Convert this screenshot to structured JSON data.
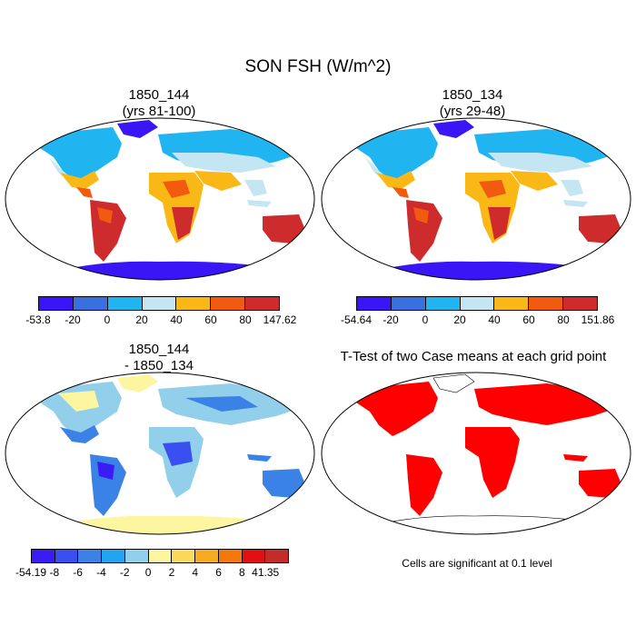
{
  "title": "SON FSH (W/m^2)",
  "panels": [
    {
      "title": "1850_144\n(yrs 81-100)"
    },
    {
      "title": "1850_134\n(yrs 29-48)"
    },
    {
      "title": "1850_144\n- 1850_134"
    },
    {
      "title": "T-Test of two Case means at each grid point"
    }
  ],
  "colorbars": [
    {
      "labels": [
        "-53.8",
        "-20",
        "0",
        "20",
        "40",
        "60",
        "80",
        "147.62"
      ],
      "colors": [
        "#3a15f5",
        "#3a6fe0",
        "#20b4f0",
        "#c4e6f2",
        "#f9b815",
        "#f25a10",
        "#ce2c2c"
      ]
    },
    {
      "labels": [
        "-54.64",
        "-20",
        "0",
        "20",
        "40",
        "60",
        "80",
        "151.86"
      ],
      "colors": [
        "#3a15f5",
        "#3a6fe0",
        "#20b4f0",
        "#c4e6f2",
        "#f9b815",
        "#f25a10",
        "#ce2c2c"
      ]
    },
    {
      "labels": [
        "-54.19",
        "-8",
        "-6",
        "-4",
        "-2",
        "0",
        "2",
        "4",
        "6",
        "8",
        "41.35"
      ],
      "colors": [
        "#3b1cf2",
        "#3a4ff0",
        "#3a82e6",
        "#22a5f0",
        "#91cfea",
        "#fdf6a0",
        "#f9da5a",
        "#f5aa20",
        "#f5780e",
        "#e21010",
        "#c42b2b"
      ]
    }
  ],
  "significance_note": "Cells are significant at 0.1 level"
}
